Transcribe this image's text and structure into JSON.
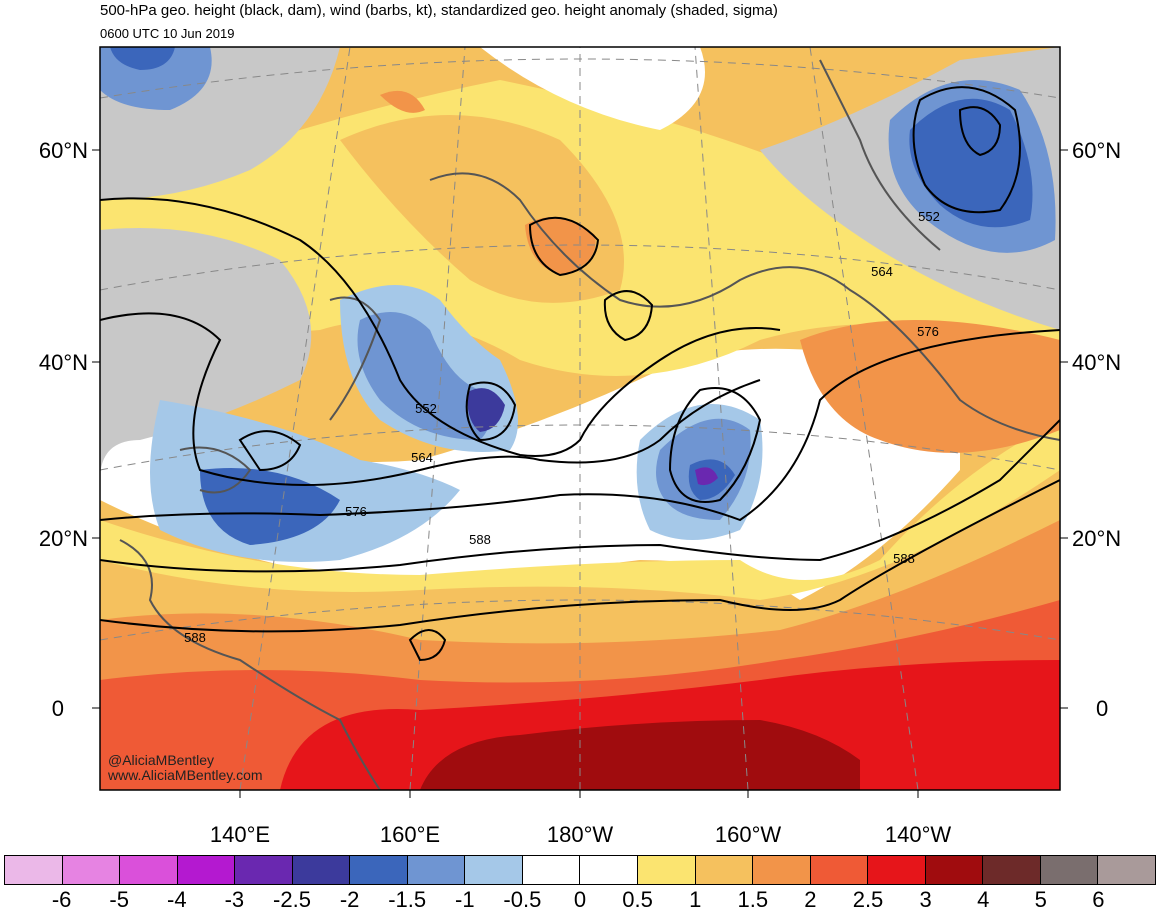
{
  "header": {
    "title": "500-hPa geo. height (black, dam), wind (barbs, kt), standardized geo. height anomaly (shaded, sigma)",
    "valid_time": "0600 UTC 10 Jun 2019"
  },
  "axes": {
    "lat_labels_left": [
      "60°N",
      "40°N",
      "20°N",
      "0"
    ],
    "lat_labels_right": [
      "60°N",
      "40°N",
      "20°N",
      "0"
    ],
    "lon_labels": [
      "140°E",
      "160°E",
      "180°W",
      "160°W",
      "140°W"
    ]
  },
  "contour_labels": [
    "552",
    "564",
    "576",
    "552",
    "564",
    "576",
    "588",
    "588",
    "588"
  ],
  "credits": {
    "handle": "@AliciaMBentley",
    "site": "www.AliciaMBentley.com"
  },
  "colorbar": {
    "colors": [
      "#ebb8e8",
      "#e683e2",
      "#da50da",
      "#b419d0",
      "#6a28b0",
      "#3c3a9c",
      "#3b66bb",
      "#6f95d2",
      "#a5c8e8",
      "#ffffff",
      "#ffffff",
      "#fbe470",
      "#f5c15e",
      "#f29449",
      "#ef5a36",
      "#e6151a",
      "#a00c0e",
      "#6d2a29",
      "#7a6e6e",
      "#a99a9a"
    ],
    "labels": [
      "-6",
      "-5",
      "-4",
      "-3",
      "-2.5",
      "-2",
      "-1.5",
      "-1",
      "-0.5",
      "0",
      "0.5",
      "1",
      "1.5",
      "2",
      "2.5",
      "3",
      "4",
      "5",
      "6"
    ]
  },
  "palette": {
    "land": "#555555",
    "grid": "#888888"
  }
}
